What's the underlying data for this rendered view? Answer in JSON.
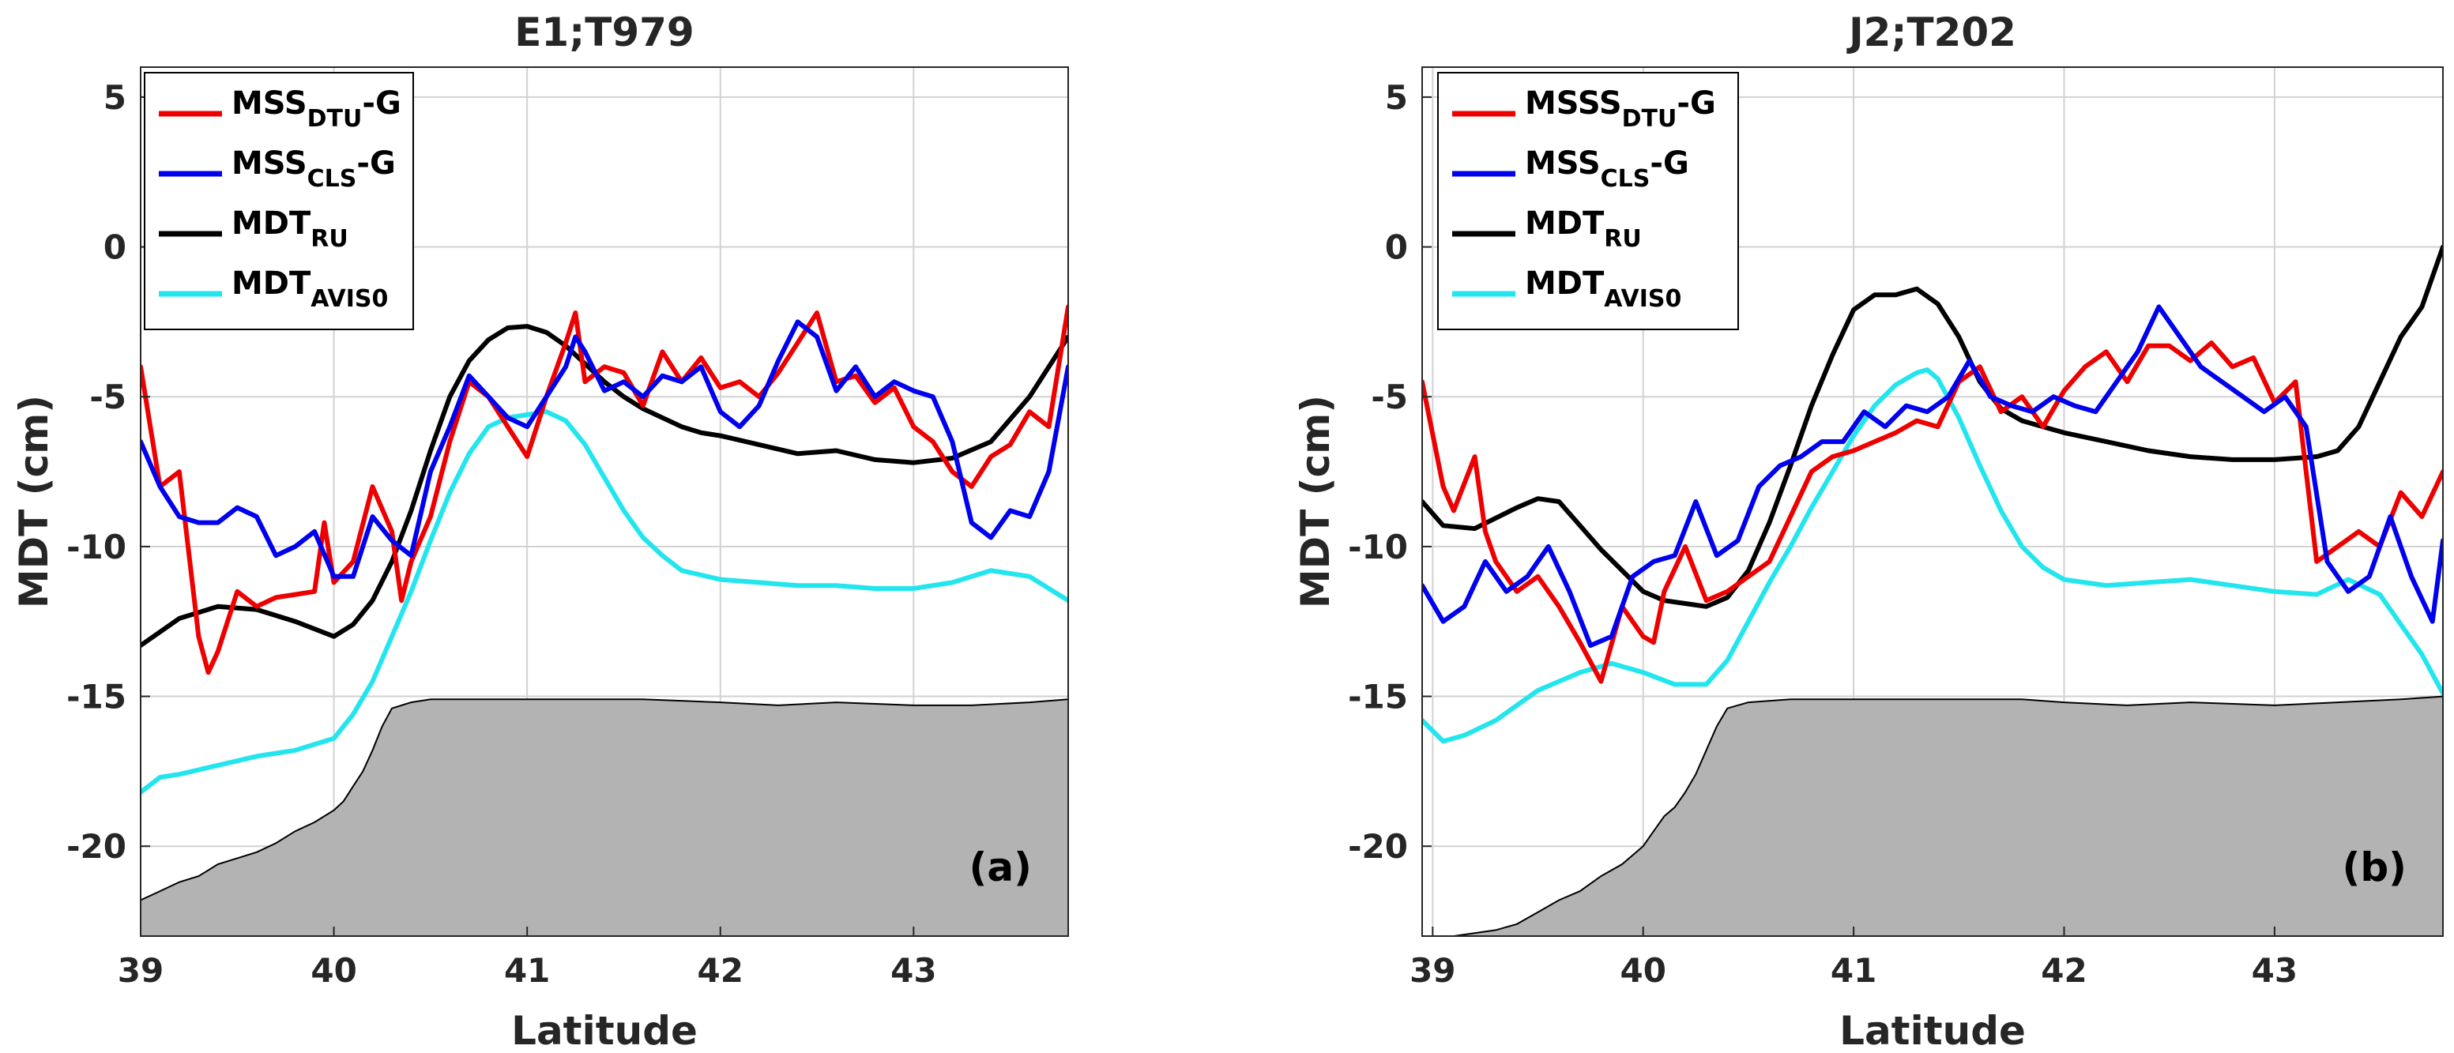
{
  "colors": {
    "dtu": "#ee0000",
    "cls": "#0000ee",
    "ru": "#000000",
    "aviso": "#22e5ee",
    "bathy": "#b3b3b3",
    "grid": "#d2d2d2",
    "axis": "#262626"
  },
  "chart_data": [
    {
      "type": "line",
      "title": "E1;T979",
      "panel_label": "(a)",
      "xlabel": "Latitude",
      "ylabel": "MDT (cm)",
      "xlim": [
        39,
        43.8
      ],
      "ylim": [
        -23,
        6
      ],
      "xticks": [
        39,
        40,
        41,
        42,
        43
      ],
      "yticks": [
        5,
        0,
        -5,
        -10,
        -15,
        -20
      ],
      "legend_location": "top-left",
      "legend": [
        {
          "base": "MSS",
          "sub": "DTU",
          "suffix": "-G",
          "key": "dtu"
        },
        {
          "base": "MSS",
          "sub": "CLS",
          "suffix": "-G",
          "key": "cls"
        },
        {
          "base": "MDT",
          "sub": "RU",
          "suffix": "",
          "key": "ru"
        },
        {
          "base": "MDT",
          "sub": "AVIS0",
          "suffix": "",
          "key": "aviso"
        }
      ],
      "series": [
        {
          "name": "MSS DTU-G",
          "key": "dtu",
          "x": [
            39.0,
            39.1,
            39.2,
            39.3,
            39.35,
            39.4,
            39.5,
            39.6,
            39.7,
            39.8,
            39.9,
            39.95,
            40.0,
            40.1,
            40.2,
            40.3,
            40.35,
            40.4,
            40.5,
            40.6,
            40.7,
            40.8,
            40.9,
            41.0,
            41.1,
            41.2,
            41.25,
            41.3,
            41.4,
            41.5,
            41.6,
            41.7,
            41.8,
            41.9,
            42.0,
            42.1,
            42.2,
            42.3,
            42.4,
            42.5,
            42.6,
            42.7,
            42.8,
            42.9,
            43.0,
            43.1,
            43.2,
            43.3,
            43.4,
            43.5,
            43.6,
            43.7,
            43.8
          ],
          "y": [
            -4,
            -8,
            -7.5,
            -13,
            -14.2,
            -13.5,
            -11.5,
            -12,
            -11.7,
            -11.6,
            -11.5,
            -9.2,
            -11.2,
            -10.5,
            -8,
            -9.5,
            -11.8,
            -10.5,
            -9,
            -6.5,
            -4.5,
            -5,
            -6,
            -7,
            -5,
            -3.2,
            -2.2,
            -4.5,
            -4,
            -4.2,
            -5.3,
            -3.5,
            -4.5,
            -3.7,
            -4.7,
            -4.5,
            -5,
            -4.2,
            -3.2,
            -2.2,
            -4.5,
            -4.3,
            -5.2,
            -4.7,
            -6,
            -6.5,
            -7.5,
            -8,
            -7,
            -6.6,
            -5.5,
            -6,
            -2
          ]
        },
        {
          "name": "MSS CLS-G",
          "key": "cls",
          "x": [
            39.0,
            39.1,
            39.2,
            39.3,
            39.4,
            39.5,
            39.6,
            39.7,
            39.8,
            39.9,
            40.0,
            40.1,
            40.2,
            40.3,
            40.4,
            40.5,
            40.6,
            40.7,
            40.8,
            40.9,
            41.0,
            41.1,
            41.2,
            41.25,
            41.3,
            41.4,
            41.5,
            41.6,
            41.7,
            41.8,
            41.9,
            42.0,
            42.1,
            42.2,
            42.3,
            42.4,
            42.5,
            42.6,
            42.7,
            42.8,
            42.9,
            43.0,
            43.1,
            43.2,
            43.3,
            43.4,
            43.5,
            43.6,
            43.7,
            43.8
          ],
          "y": [
            -6.5,
            -8,
            -9,
            -9.2,
            -9.2,
            -8.7,
            -9,
            -10.3,
            -10,
            -9.5,
            -11,
            -11,
            -9,
            -9.8,
            -10.3,
            -7.5,
            -6,
            -4.3,
            -5,
            -5.7,
            -6,
            -5,
            -4,
            -3,
            -3.5,
            -4.8,
            -4.5,
            -5,
            -4.3,
            -4.5,
            -4,
            -5.5,
            -6,
            -5.3,
            -3.8,
            -2.5,
            -3,
            -4.8,
            -4,
            -5,
            -4.5,
            -4.8,
            -5,
            -6.5,
            -9.2,
            -9.7,
            -8.8,
            -9,
            -7.5,
            -4
          ]
        },
        {
          "name": "MDT RU",
          "key": "ru",
          "x": [
            39.0,
            39.2,
            39.4,
            39.6,
            39.8,
            40.0,
            40.1,
            40.2,
            40.3,
            40.4,
            40.5,
            40.6,
            40.7,
            40.8,
            40.9,
            41.0,
            41.1,
            41.2,
            41.3,
            41.4,
            41.5,
            41.6,
            41.7,
            41.8,
            41.9,
            42.0,
            42.2,
            42.4,
            42.6,
            42.8,
            43.0,
            43.2,
            43.4,
            43.6,
            43.8
          ],
          "y": [
            -13.3,
            -12.4,
            -12,
            -12.1,
            -12.5,
            -13,
            -12.6,
            -11.8,
            -10.5,
            -8.8,
            -6.8,
            -5,
            -3.8,
            -3.1,
            -2.7,
            -2.65,
            -2.85,
            -3.3,
            -3.9,
            -4.5,
            -5,
            -5.4,
            -5.7,
            -6,
            -6.2,
            -6.3,
            -6.6,
            -6.9,
            -6.8,
            -7.1,
            -7.2,
            -7.05,
            -6.5,
            -5,
            -3
          ]
        },
        {
          "name": "MDT AVIS0",
          "key": "aviso",
          "x": [
            39.0,
            39.1,
            39.2,
            39.4,
            39.6,
            39.8,
            40.0,
            40.1,
            40.2,
            40.3,
            40.4,
            40.5,
            40.6,
            40.7,
            40.8,
            40.9,
            41.0,
            41.1,
            41.2,
            41.3,
            41.4,
            41.5,
            41.6,
            41.7,
            41.8,
            42.0,
            42.2,
            42.4,
            42.6,
            42.8,
            43.0,
            43.2,
            43.4,
            43.6,
            43.8
          ],
          "y": [
            -18.2,
            -17.7,
            -17.6,
            -17.3,
            -17,
            -16.8,
            -16.4,
            -15.6,
            -14.5,
            -13,
            -11.5,
            -9.8,
            -8.2,
            -6.9,
            -6,
            -5.7,
            -5.6,
            -5.5,
            -5.8,
            -6.6,
            -7.7,
            -8.8,
            -9.7,
            -10.3,
            -10.8,
            -11.1,
            -11.2,
            -11.3,
            -11.3,
            -11.4,
            -11.4,
            -11.2,
            -10.8,
            -11,
            -11.8
          ]
        },
        {
          "name": "Bathymetry",
          "key": "bathy",
          "x": [
            39.0,
            39.1,
            39.2,
            39.3,
            39.4,
            39.5,
            39.6,
            39.7,
            39.8,
            39.9,
            40.0,
            40.05,
            40.1,
            40.15,
            40.2,
            40.25,
            40.3,
            40.4,
            40.5,
            40.7,
            41.0,
            41.3,
            41.6,
            42.0,
            42.3,
            42.6,
            43.0,
            43.3,
            43.6,
            43.8
          ],
          "y": [
            -21.8,
            -21.5,
            -21.2,
            -21,
            -20.6,
            -20.4,
            -20.2,
            -19.9,
            -19.5,
            -19.2,
            -18.8,
            -18.5,
            -18,
            -17.5,
            -16.8,
            -16,
            -15.4,
            -15.2,
            -15.1,
            -15.1,
            -15.1,
            -15.1,
            -15.1,
            -15.2,
            -15.3,
            -15.2,
            -15.3,
            -15.3,
            -15.2,
            -15.1
          ]
        }
      ]
    },
    {
      "type": "line",
      "title": "J2;T202",
      "panel_label": "(b)",
      "xlabel": "Latitude",
      "ylabel": "MDT (cm)",
      "xlim": [
        38.95,
        43.8
      ],
      "ylim": [
        -23,
        6
      ],
      "xticks": [
        39,
        40,
        41,
        42,
        43
      ],
      "yticks": [
        5,
        0,
        -5,
        -10,
        -15,
        -20
      ],
      "legend_location": "top-left",
      "legend": [
        {
          "base": "MSSS",
          "sub": "DTU",
          "suffix": "-G",
          "key": "dtu"
        },
        {
          "base": "MSS",
          "sub": "CLS",
          "suffix": "-G",
          "key": "cls"
        },
        {
          "base": "MDT",
          "sub": "RU",
          "suffix": "",
          "key": "ru"
        },
        {
          "base": "MDT",
          "sub": "AVIS0",
          "suffix": "",
          "key": "aviso"
        }
      ],
      "series": [
        {
          "name": "MSSS DTU-G",
          "key": "dtu",
          "x": [
            38.95,
            39.05,
            39.1,
            39.2,
            39.25,
            39.3,
            39.4,
            39.5,
            39.6,
            39.7,
            39.8,
            39.9,
            40.0,
            40.05,
            40.1,
            40.2,
            40.3,
            40.4,
            40.5,
            40.6,
            40.7,
            40.8,
            40.9,
            41.0,
            41.1,
            41.2,
            41.3,
            41.4,
            41.5,
            41.6,
            41.7,
            41.8,
            41.9,
            42.0,
            42.1,
            42.2,
            42.3,
            42.4,
            42.5,
            42.6,
            42.7,
            42.8,
            42.9,
            43.0,
            43.1,
            43.2,
            43.3,
            43.4,
            43.5,
            43.6,
            43.7,
            43.8
          ],
          "y": [
            -4.5,
            -8,
            -8.8,
            -7,
            -9.5,
            -10.5,
            -11.5,
            -11,
            -12,
            -13.2,
            -14.5,
            -12,
            -13,
            -13.2,
            -11.5,
            -10,
            -11.8,
            -11.5,
            -11,
            -10.5,
            -9,
            -7.5,
            -7,
            -6.8,
            -6.5,
            -6.2,
            -5.8,
            -6,
            -4.5,
            -4,
            -5.5,
            -5,
            -6,
            -4.8,
            -4,
            -3.5,
            -4.5,
            -3.3,
            -3.3,
            -3.8,
            -3.2,
            -4,
            -3.7,
            -5.2,
            -4.5,
            -10.5,
            -10,
            -9.5,
            -10,
            -8.2,
            -9,
            -7.5
          ]
        },
        {
          "name": "MSS CLS-G",
          "key": "cls",
          "x": [
            38.95,
            39.05,
            39.15,
            39.25,
            39.35,
            39.45,
            39.55,
            39.65,
            39.75,
            39.85,
            39.95,
            40.05,
            40.15,
            40.25,
            40.35,
            40.45,
            40.55,
            40.65,
            40.75,
            40.85,
            40.95,
            41.05,
            41.15,
            41.25,
            41.35,
            41.45,
            41.55,
            41.65,
            41.75,
            41.85,
            41.95,
            42.05,
            42.15,
            42.25,
            42.35,
            42.45,
            42.55,
            42.65,
            42.75,
            42.85,
            42.95,
            43.05,
            43.15,
            43.25,
            43.35,
            43.45,
            43.55,
            43.65,
            43.75,
            43.8
          ],
          "y": [
            -11.3,
            -12.5,
            -12,
            -10.5,
            -11.5,
            -11,
            -10,
            -11.5,
            -13.3,
            -13,
            -11,
            -10.5,
            -10.3,
            -8.5,
            -10.3,
            -9.8,
            -8,
            -7.3,
            -7,
            -6.5,
            -6.5,
            -5.5,
            -6,
            -5.3,
            -5.5,
            -5,
            -3.8,
            -5,
            -5.3,
            -5.5,
            -5,
            -5.3,
            -5.5,
            -4.5,
            -3.5,
            -2,
            -3,
            -4,
            -4.5,
            -5,
            -5.5,
            -5,
            -6,
            -10.5,
            -11.5,
            -11,
            -9,
            -11,
            -12.5,
            -9.8
          ]
        },
        {
          "name": "MDT RU",
          "key": "ru",
          "x": [
            38.95,
            39.05,
            39.2,
            39.4,
            39.5,
            39.6,
            39.7,
            39.8,
            39.9,
            40.0,
            40.1,
            40.2,
            40.3,
            40.4,
            40.5,
            40.6,
            40.7,
            40.8,
            40.9,
            41.0,
            41.1,
            41.2,
            41.3,
            41.4,
            41.5,
            41.6,
            41.7,
            41.8,
            41.9,
            42.0,
            42.2,
            42.4,
            42.6,
            42.8,
            43.0,
            43.2,
            43.3,
            43.4,
            43.5,
            43.6,
            43.7,
            43.8
          ],
          "y": [
            -8.5,
            -9.3,
            -9.4,
            -8.7,
            -8.4,
            -8.5,
            -9.3,
            -10.1,
            -10.8,
            -11.5,
            -11.8,
            -11.9,
            -12,
            -11.7,
            -10.8,
            -9.2,
            -7.3,
            -5.3,
            -3.6,
            -2.1,
            -1.6,
            -1.6,
            -1.4,
            -1.9,
            -3,
            -4.5,
            -5.4,
            -5.8,
            -6,
            -6.2,
            -6.5,
            -6.8,
            -7,
            -7.1,
            -7.1,
            -7,
            -6.8,
            -6,
            -4.5,
            -3,
            -2,
            0
          ]
        },
        {
          "name": "MDT AVIS0",
          "key": "aviso",
          "x": [
            38.95,
            39.05,
            39.15,
            39.3,
            39.5,
            39.7,
            39.85,
            40.0,
            40.15,
            40.3,
            40.4,
            40.5,
            40.6,
            40.7,
            40.8,
            40.9,
            41.0,
            41.1,
            41.2,
            41.3,
            41.35,
            41.4,
            41.5,
            41.6,
            41.7,
            41.8,
            41.9,
            42.0,
            42.2,
            42.4,
            42.6,
            42.8,
            43.0,
            43.2,
            43.35,
            43.5,
            43.6,
            43.7,
            43.8
          ],
          "y": [
            -15.8,
            -16.5,
            -16.3,
            -15.8,
            -14.8,
            -14.2,
            -13.9,
            -14.2,
            -14.6,
            -14.6,
            -13.8,
            -12.5,
            -11.2,
            -10,
            -8.7,
            -7.5,
            -6.3,
            -5.3,
            -4.6,
            -4.2,
            -4.1,
            -4.4,
            -5.7,
            -7.3,
            -8.8,
            -10,
            -10.7,
            -11.1,
            -11.3,
            -11.2,
            -11.1,
            -11.3,
            -11.5,
            -11.6,
            -11.1,
            -11.6,
            -12.6,
            -13.6,
            -14.9
          ]
        },
        {
          "name": "Bathymetry",
          "key": "bathy",
          "x": [
            38.95,
            39.1,
            39.3,
            39.4,
            39.5,
            39.6,
            39.7,
            39.8,
            39.9,
            40.0,
            40.05,
            40.1,
            40.15,
            40.2,
            40.25,
            40.3,
            40.35,
            40.4,
            40.5,
            40.7,
            41.0,
            41.5,
            41.8,
            42.0,
            42.3,
            42.6,
            43.0,
            43.3,
            43.6,
            43.8
          ],
          "y": [
            -23,
            -23,
            -22.8,
            -22.6,
            -22.2,
            -21.8,
            -21.5,
            -21,
            -20.6,
            -20,
            -19.5,
            -19,
            -18.7,
            -18.2,
            -17.6,
            -16.8,
            -16,
            -15.4,
            -15.2,
            -15.1,
            -15.1,
            -15.1,
            -15.1,
            -15.2,
            -15.3,
            -15.2,
            -15.3,
            -15.2,
            -15.1,
            -15
          ]
        }
      ]
    }
  ]
}
